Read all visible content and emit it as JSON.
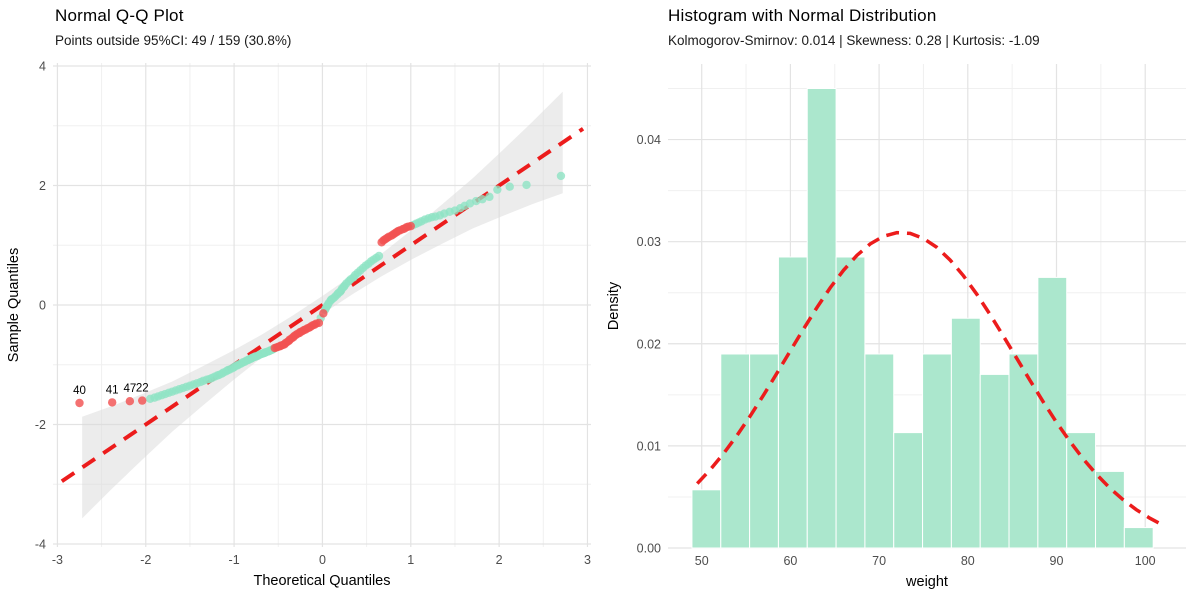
{
  "figure": {
    "background": "#ffffff",
    "grid_major_color": "#e3e3e3",
    "grid_minor_color": "#f0f0f0"
  },
  "chart_data": [
    {
      "type": "scatter",
      "title": "Normal Q-Q Plot",
      "subtitle": "Points outside 95%CI: 49 / 159 (30.8%)",
      "xlabel": "Theoretical Quantiles",
      "ylabel": "Sample Quantiles",
      "xlim": [
        -3.05,
        3.04
      ],
      "ylim": [
        -4.05,
        4.05
      ],
      "x_ticks": [
        -3,
        -2,
        -1,
        0,
        1,
        2,
        3
      ],
      "x_minor": [
        -2.5,
        -1.5,
        -0.5,
        0.5,
        1.5,
        2.5
      ],
      "y_ticks": [
        -4,
        -2,
        0,
        2,
        4
      ],
      "y_minor": [
        -3,
        -1,
        1,
        3
      ],
      "n_points": 159,
      "n_outside_ci": 49,
      "reference_line": {
        "x1": -2.95,
        "y1": -2.95,
        "x2": 2.95,
        "y2": 2.95,
        "color": "#ec1c1c",
        "style": "dashed"
      },
      "confidence_band": {
        "fill": "#d9d9d9",
        "opacity": 0.5,
        "x": [
          -2.72,
          -2.38,
          -2.04,
          -1.7,
          -1.36,
          -1.02,
          -0.68,
          -0.34,
          0,
          0.34,
          0.68,
          1.02,
          1.36,
          1.7,
          2.04,
          2.38,
          2.72
        ],
        "half_width": [
          0.85,
          0.69,
          0.55,
          0.42,
          0.33,
          0.25,
          0.19,
          0.16,
          0.15,
          0.16,
          0.19,
          0.25,
          0.33,
          0.42,
          0.55,
          0.69,
          0.85
        ]
      },
      "series": [
        {
          "name": "within-ci",
          "color": "#8fe3c4",
          "opacity": 0.8,
          "points": [
            [
              -1.95,
              -1.57
            ],
            [
              -1.9,
              -1.55
            ],
            [
              -1.86,
              -1.53
            ],
            [
              -1.82,
              -1.51
            ],
            [
              -1.78,
              -1.49
            ],
            [
              -1.74,
              -1.47
            ],
            [
              -1.7,
              -1.45
            ],
            [
              -1.66,
              -1.43
            ],
            [
              -1.62,
              -1.41
            ],
            [
              -1.58,
              -1.39
            ],
            [
              -1.54,
              -1.37
            ],
            [
              -1.5,
              -1.35
            ],
            [
              -1.46,
              -1.33
            ],
            [
              -1.42,
              -1.31
            ],
            [
              -1.38,
              -1.29
            ],
            [
              -1.35,
              -1.27
            ],
            [
              -1.31,
              -1.25
            ],
            [
              -1.28,
              -1.24
            ],
            [
              -1.25,
              -1.22
            ],
            [
              -1.22,
              -1.2
            ],
            [
              -1.19,
              -1.18
            ],
            [
              -1.17,
              -1.17
            ],
            [
              -1.14,
              -1.15
            ],
            [
              -1.12,
              -1.13
            ],
            [
              -1.09,
              -1.11
            ],
            [
              -1.07,
              -1.09
            ],
            [
              -1.05,
              -1.08
            ],
            [
              -1.02,
              -1.06
            ],
            [
              -1.0,
              -1.04
            ],
            [
              -0.98,
              -1.02
            ],
            [
              -0.96,
              -1.01
            ],
            [
              -0.94,
              -0.99
            ],
            [
              -0.92,
              -0.98
            ],
            [
              -0.9,
              -0.96
            ],
            [
              -0.88,
              -0.95
            ],
            [
              -0.86,
              -0.93
            ],
            [
              -0.84,
              -0.92
            ],
            [
              -0.83,
              -0.91
            ],
            [
              -0.81,
              -0.9
            ],
            [
              -0.8,
              -0.89
            ],
            [
              -0.79,
              -0.88
            ],
            [
              -0.77,
              -0.87
            ],
            [
              -0.76,
              -0.86
            ],
            [
              -0.75,
              -0.86
            ],
            [
              -0.73,
              -0.85
            ],
            [
              -0.71,
              -0.83
            ],
            [
              -0.69,
              -0.82
            ],
            [
              -0.67,
              -0.81
            ],
            [
              -0.66,
              -0.8
            ],
            [
              -0.65,
              -0.8
            ],
            [
              -0.64,
              -0.79
            ],
            [
              -0.62,
              -0.78
            ],
            [
              -0.6,
              -0.77
            ],
            [
              -0.59,
              -0.76
            ],
            [
              -0.57,
              -0.75
            ],
            [
              -0.56,
              -0.74
            ],
            [
              -0.55,
              -0.73
            ],
            [
              -0.02,
              -0.22
            ],
            [
              0.03,
              -0.08
            ],
            [
              0.04,
              -0.05
            ],
            [
              0.05,
              -0.02
            ],
            [
              0.06,
              0.0
            ],
            [
              0.07,
              0.03
            ],
            [
              0.09,
              0.07
            ],
            [
              0.1,
              0.09
            ],
            [
              0.11,
              0.1
            ],
            [
              0.13,
              0.12
            ],
            [
              0.15,
              0.15
            ],
            [
              0.17,
              0.18
            ],
            [
              0.18,
              0.2
            ],
            [
              0.2,
              0.22
            ],
            [
              0.21,
              0.24
            ],
            [
              0.22,
              0.27
            ],
            [
              0.24,
              0.3
            ],
            [
              0.25,
              0.32
            ],
            [
              0.27,
              0.36
            ],
            [
              0.3,
              0.4
            ],
            [
              0.32,
              0.43
            ],
            [
              0.35,
              0.46
            ],
            [
              0.37,
              0.5
            ],
            [
              0.4,
              0.54
            ],
            [
              0.43,
              0.58
            ],
            [
              0.46,
              0.62
            ],
            [
              0.49,
              0.66
            ],
            [
              0.52,
              0.69
            ],
            [
              0.55,
              0.73
            ],
            [
              0.58,
              0.76
            ],
            [
              0.61,
              0.79
            ],
            [
              0.64,
              0.82
            ],
            [
              1.03,
              1.34
            ],
            [
              1.06,
              1.36
            ],
            [
              1.09,
              1.38
            ],
            [
              1.12,
              1.4
            ],
            [
              1.16,
              1.43
            ],
            [
              1.2,
              1.45
            ],
            [
              1.24,
              1.47
            ],
            [
              1.28,
              1.48
            ],
            [
              1.33,
              1.5
            ],
            [
              1.38,
              1.53
            ],
            [
              1.44,
              1.56
            ],
            [
              1.5,
              1.58
            ],
            [
              1.56,
              1.62
            ],
            [
              1.61,
              1.66
            ],
            [
              1.67,
              1.7
            ],
            [
              1.74,
              1.74
            ],
            [
              1.81,
              1.77
            ],
            [
              1.89,
              1.81
            ],
            [
              1.98,
              1.93
            ],
            [
              2.12,
              1.98
            ],
            [
              2.31,
              2.01
            ],
            [
              2.7,
              2.16
            ]
          ]
        },
        {
          "name": "outside-ci",
          "color": "#f15252",
          "opacity": 0.82,
          "points": [
            [
              -2.75,
              -1.64
            ],
            [
              -2.38,
              -1.63
            ],
            [
              -2.18,
              -1.61
            ],
            [
              -2.04,
              -1.6
            ],
            [
              -0.54,
              -0.72
            ],
            [
              -0.52,
              -0.71
            ],
            [
              -0.5,
              -0.7
            ],
            [
              -0.48,
              -0.69
            ],
            [
              -0.47,
              -0.68
            ],
            [
              -0.45,
              -0.67
            ],
            [
              -0.43,
              -0.66
            ],
            [
              -0.42,
              -0.64
            ],
            [
              -0.4,
              -0.62
            ],
            [
              -0.38,
              -0.6
            ],
            [
              -0.37,
              -0.58
            ],
            [
              -0.35,
              -0.56
            ],
            [
              -0.33,
              -0.54
            ],
            [
              -0.32,
              -0.52
            ],
            [
              -0.3,
              -0.5
            ],
            [
              -0.28,
              -0.48
            ],
            [
              -0.26,
              -0.47
            ],
            [
              -0.25,
              -0.45
            ],
            [
              -0.23,
              -0.44
            ],
            [
              -0.21,
              -0.42
            ],
            [
              -0.19,
              -0.41
            ],
            [
              -0.17,
              -0.39
            ],
            [
              -0.15,
              -0.38
            ],
            [
              -0.13,
              -0.36
            ],
            [
              -0.11,
              -0.34
            ],
            [
              -0.09,
              -0.33
            ],
            [
              -0.07,
              -0.31
            ],
            [
              -0.04,
              -0.3
            ],
            [
              0.01,
              -0.14
            ],
            [
              0.67,
              1.05
            ],
            [
              0.69,
              1.08
            ],
            [
              0.71,
              1.1
            ],
            [
              0.73,
              1.12
            ],
            [
              0.75,
              1.14
            ],
            [
              0.78,
              1.16
            ],
            [
              0.8,
              1.18
            ],
            [
              0.82,
              1.2
            ],
            [
              0.84,
              1.22
            ],
            [
              0.86,
              1.24
            ],
            [
              0.88,
              1.25
            ],
            [
              0.91,
              1.27
            ],
            [
              0.93,
              1.28
            ],
            [
              0.95,
              1.3
            ],
            [
              0.97,
              1.31
            ],
            [
              1.0,
              1.32
            ]
          ]
        }
      ],
      "point_labels": [
        {
          "text": "40",
          "x": -2.75,
          "y": -1.64
        },
        {
          "text": "41",
          "x": -2.38,
          "y": -1.63
        },
        {
          "text": "47",
          "x": -2.18,
          "y": -1.61
        },
        {
          "text": "22",
          "x": -2.04,
          "y": -1.6
        }
      ]
    },
    {
      "type": "bar",
      "title": "Histogram with Normal Distribution",
      "subtitle": "Kolmogorov-Smirnov: 0.014 | Skewness: 0.28 | Kurtosis: -1.09",
      "xlabel": "weight",
      "ylabel": "Density",
      "xlim": [
        46.2,
        104.6
      ],
      "ylim": [
        0,
        0.0474
      ],
      "x_ticks": [
        50,
        60,
        70,
        80,
        90,
        100
      ],
      "x_minor": [
        55,
        65,
        75,
        85,
        95
      ],
      "y_ticks": [
        0,
        0.01,
        0.02,
        0.03,
        0.04
      ],
      "y_tick_labels": [
        "0.00",
        "0.01",
        "0.02",
        "0.03",
        "0.04"
      ],
      "y_minor": [
        0.005,
        0.015,
        0.025,
        0.035,
        0.045
      ],
      "bar_fill": "#abe7cd",
      "bar_stroke": "#ffffff",
      "bin_start": 48.9,
      "bin_width": 3.25,
      "densities": [
        0.0057,
        0.019,
        0.019,
        0.0285,
        0.045,
        0.0285,
        0.019,
        0.0113,
        0.019,
        0.0225,
        0.017,
        0.019,
        0.0265,
        0.0113,
        0.0075,
        0.002
      ],
      "normal_curve": {
        "color": "#ec1c1c",
        "style": "dashed",
        "mean": 72.5,
        "sd": 12.9,
        "points": [
          [
            49.5,
            0.00631
          ],
          [
            51.0,
            0.00771
          ],
          [
            52.5,
            0.00929
          ],
          [
            54.0,
            0.01105
          ],
          [
            55.5,
            0.01297
          ],
          [
            57.0,
            0.01501
          ],
          [
            58.5,
            0.01715
          ],
          [
            60.0,
            0.01932
          ],
          [
            61.5,
            0.02148
          ],
          [
            63.0,
            0.02356
          ],
          [
            64.5,
            0.0255
          ],
          [
            66.0,
            0.02721
          ],
          [
            67.5,
            0.02866
          ],
          [
            69.0,
            0.02978
          ],
          [
            70.5,
            0.03053
          ],
          [
            72.0,
            0.03088
          ],
          [
            73.5,
            0.03081
          ],
          [
            75.0,
            0.03032
          ],
          [
            76.5,
            0.02945
          ],
          [
            78.0,
            0.02821
          ],
          [
            79.5,
            0.02667
          ],
          [
            81.0,
            0.02487
          ],
          [
            82.5,
            0.02288
          ],
          [
            84.0,
            0.02077
          ],
          [
            85.5,
            0.0186
          ],
          [
            87.0,
            0.01643
          ],
          [
            88.5,
            0.01432
          ],
          [
            90.0,
            0.01231
          ],
          [
            91.5,
            0.01045
          ],
          [
            93.0,
            0.00874
          ],
          [
            94.5,
            0.00722
          ],
          [
            96.0,
            0.00588
          ],
          [
            97.5,
            0.00473
          ],
          [
            99.0,
            0.00375
          ],
          [
            100.5,
            0.00293
          ],
          [
            101.5,
            0.00247
          ]
        ]
      }
    }
  ]
}
